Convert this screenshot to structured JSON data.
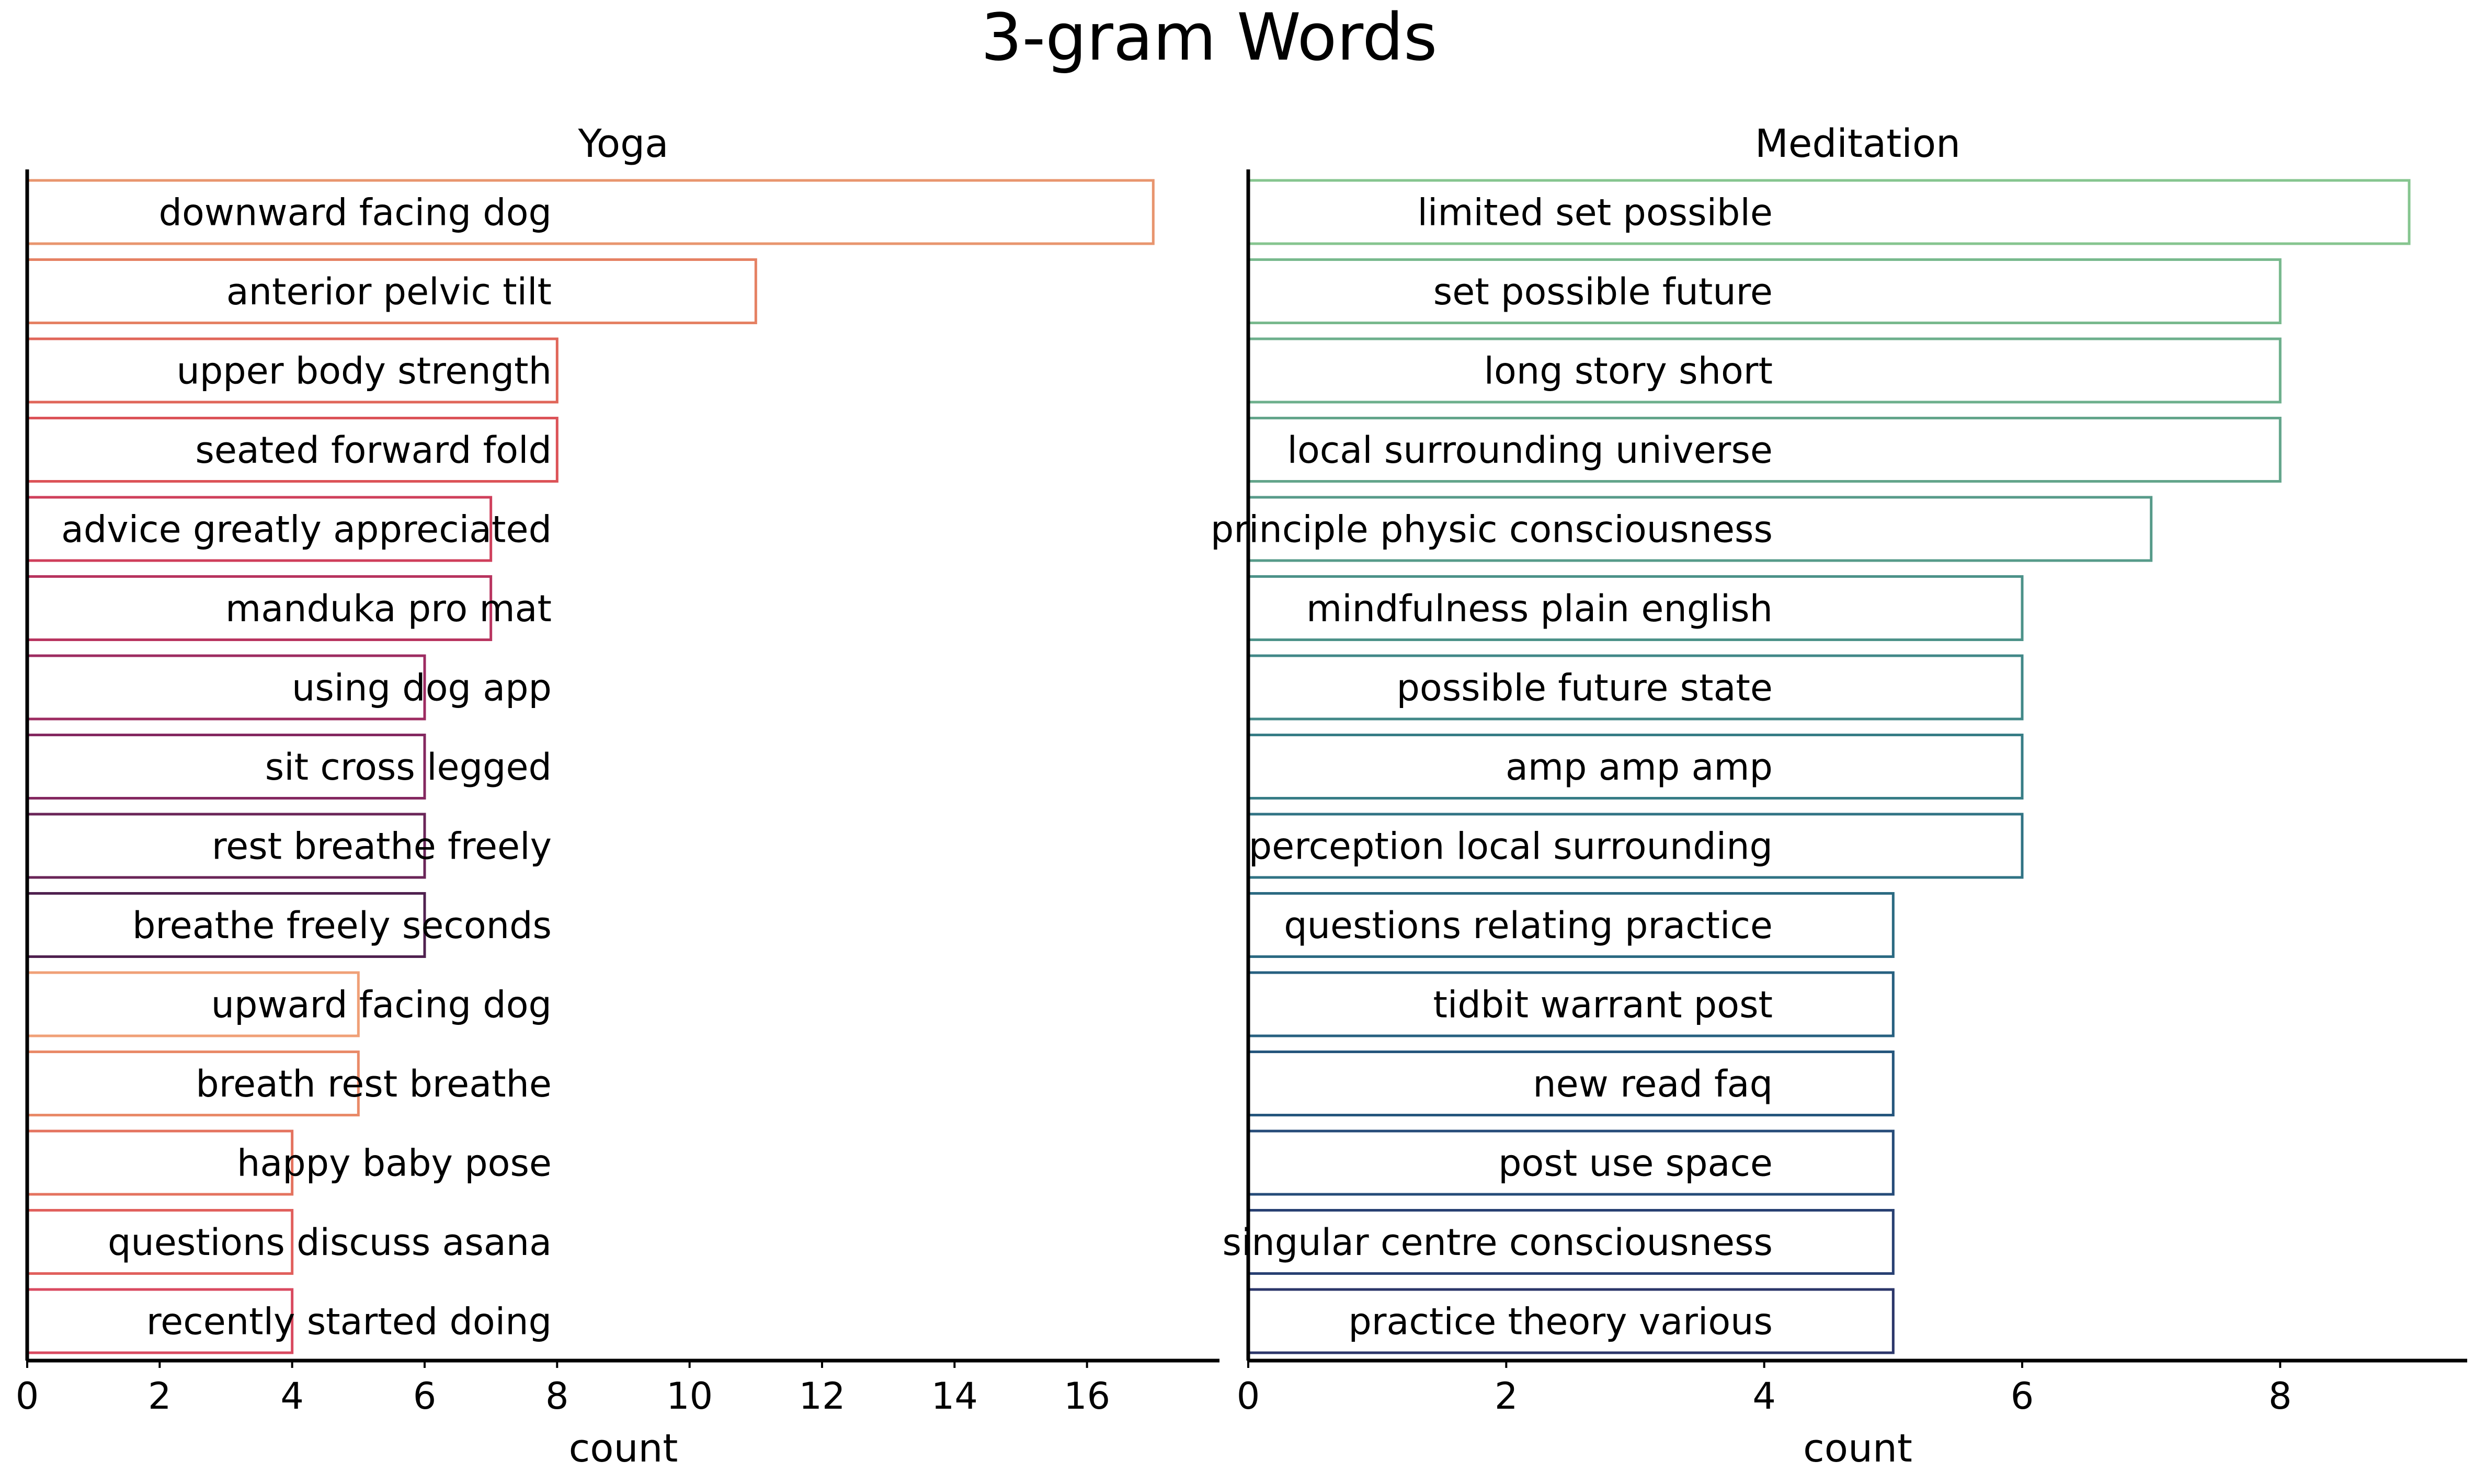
{
  "title": "3-gram Words",
  "chart_data": [
    {
      "type": "bar",
      "orientation": "horizontal",
      "title": "Yoga",
      "xlabel": "count",
      "ylabel": "",
      "xlim": [
        0,
        18
      ],
      "xticks": [
        0,
        2,
        4,
        6,
        8,
        10,
        12,
        14,
        16
      ],
      "grid": false,
      "bar_fill": "none",
      "categories": [
        "downward facing dog",
        "anterior pelvic tilt",
        "upper body strength",
        "seated forward fold",
        "advice greatly appreciated",
        "manduka pro mat",
        "using dog app",
        "sit cross legged",
        "rest breathe freely",
        "breathe freely seconds",
        "upward facing dog",
        "breath rest breathe",
        "happy baby pose",
        "questions discuss asana",
        "recently started doing"
      ],
      "values": [
        17,
        11,
        8,
        8,
        7,
        7,
        6,
        6,
        6,
        6,
        5,
        5,
        4,
        4,
        4
      ],
      "colors": [
        "#e8956e",
        "#e58163",
        "#e06659",
        "#dc5358",
        "#cf3f5b",
        "#b8345f",
        "#9d2b61",
        "#842860",
        "#6a2558",
        "#4f214f",
        "#f0a077",
        "#e98a68",
        "#e4735f",
        "#e1605d",
        "#d94a60"
      ]
    },
    {
      "type": "bar",
      "orientation": "horizontal",
      "title": "Meditation",
      "xlabel": "count",
      "ylabel": "",
      "xlim": [
        0,
        9.45
      ],
      "xticks": [
        0,
        2,
        4,
        6,
        8
      ],
      "grid": false,
      "bar_fill": "none",
      "categories": [
        "limited set possible",
        "set possible future",
        "long story short",
        "local surrounding universe",
        "principle physic consciousness",
        "mindfulness plain english",
        "possible future state",
        "amp amp amp",
        "perception local surrounding",
        "questions relating practice",
        "tidbit warrant post",
        "new read faq",
        "post use space",
        "singular centre consciousness",
        "practice theory various"
      ],
      "values": [
        9,
        8,
        8,
        8,
        7,
        6,
        6,
        6,
        6,
        5,
        5,
        5,
        5,
        5,
        5
      ],
      "colors": [
        "#86c58f",
        "#78b98d",
        "#6daf8c",
        "#63a58b",
        "#579b8a",
        "#4c9289",
        "#418888",
        "#377d86",
        "#307384",
        "#2b6a82",
        "#276080",
        "#25567d",
        "#254b78",
        "#284072",
        "#2b366a"
      ]
    }
  ]
}
